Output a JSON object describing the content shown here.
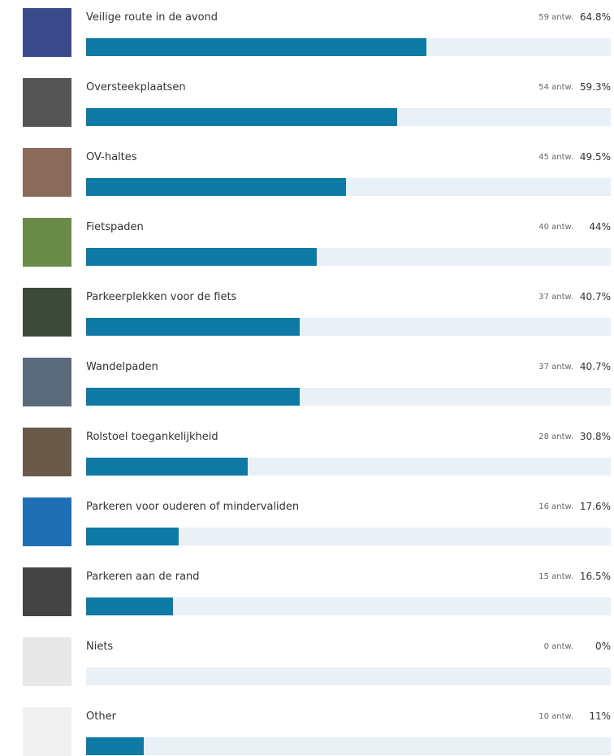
{
  "items": [
    {
      "label": "Veilige route in de avond",
      "answers": "59 antw.",
      "percent": 64.8,
      "percent_label": "64.8%"
    },
    {
      "label": "Oversteekplaatsen",
      "answers": "54 antw.",
      "percent": 59.3,
      "percent_label": "59.3%"
    },
    {
      "label": "OV-haltes",
      "answers": "45 antw.",
      "percent": 49.5,
      "percent_label": "49.5%"
    },
    {
      "label": "Fietspaden",
      "answers": "40 antw.",
      "percent": 44,
      "percent_label": "44%"
    },
    {
      "label": "Parkeerplekken voor de fiets",
      "answers": "37 antw.",
      "percent": 40.7,
      "percent_label": "40.7%"
    },
    {
      "label": "Wandelpaden",
      "answers": "37 antw.",
      "percent": 40.7,
      "percent_label": "40.7%"
    },
    {
      "label": "Rolstoel toegankelijkheid",
      "answers": "28 antw.",
      "percent": 30.8,
      "percent_label": "30.8%"
    },
    {
      "label": "Parkeren voor ouderen of mindervaliden",
      "answers": "16 antw.",
      "percent": 17.6,
      "percent_label": "17.6%"
    },
    {
      "label": "Parkeren aan de rand",
      "answers": "15 antw.",
      "percent": 16.5,
      "percent_label": "16.5%"
    },
    {
      "label": "Niets",
      "answers": "0 antw.",
      "percent": 0,
      "percent_label": "0%"
    },
    {
      "label": "Other",
      "answers": "10 antw.",
      "percent": 11,
      "percent_label": "11%"
    }
  ]
}
